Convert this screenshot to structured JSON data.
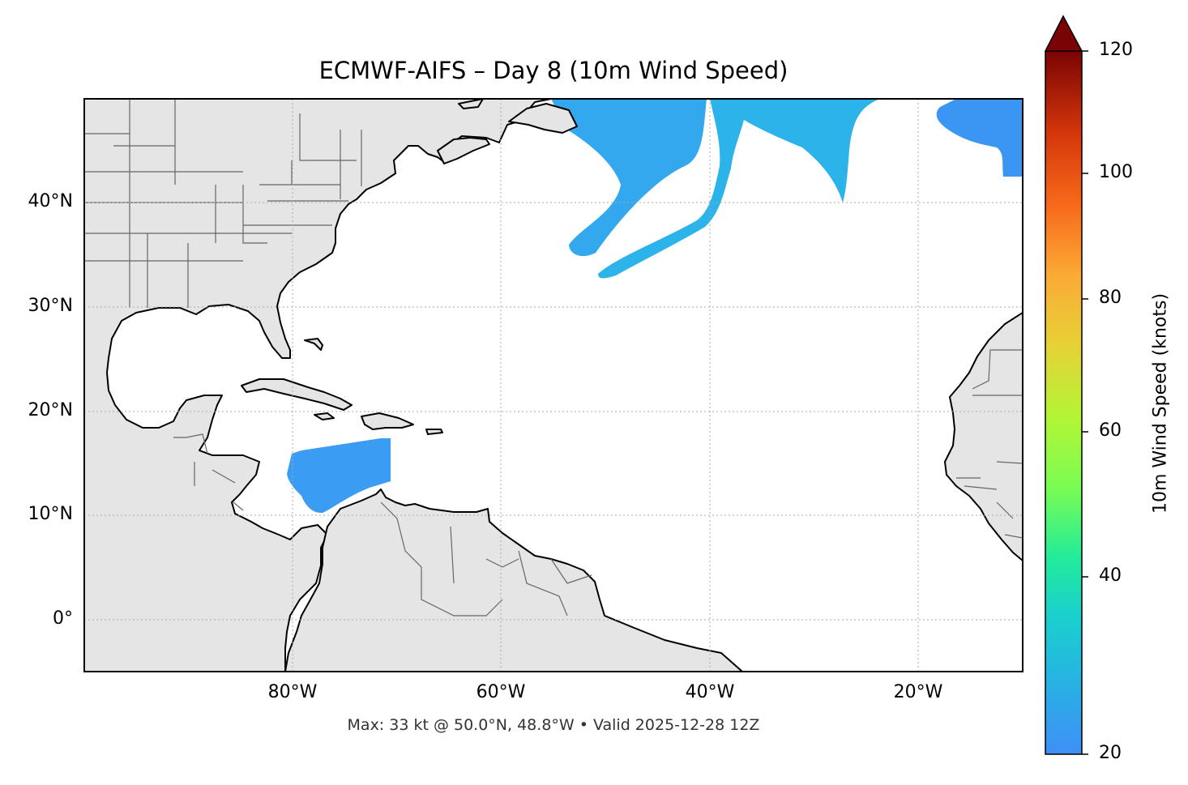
{
  "title": "ECMWF-AIFS – Day 8 (10m Wind Speed)",
  "footer": "Max: 33 kt @ 50.0°N, 48.8°W • Valid 2025-12-28 12Z",
  "map": {
    "lat_ticks": [
      "40°N",
      "30°N",
      "20°N",
      "10°N",
      "0°"
    ],
    "lon_ticks": [
      "80°W",
      "60°W",
      "40°W",
      "20°W"
    ],
    "extent": {
      "lon_min": -100,
      "lon_max": -10,
      "lat_min": -5,
      "lat_max": 50
    },
    "land_color": "#e5e5e5",
    "gridlines": true
  },
  "colorbar": {
    "label": "10m Wind Speed (knots)",
    "ticks": [
      "20",
      "40",
      "60",
      "80",
      "100",
      "120"
    ],
    "min": 20,
    "max": 120,
    "colormap": "turbo",
    "extend": "max"
  }
}
